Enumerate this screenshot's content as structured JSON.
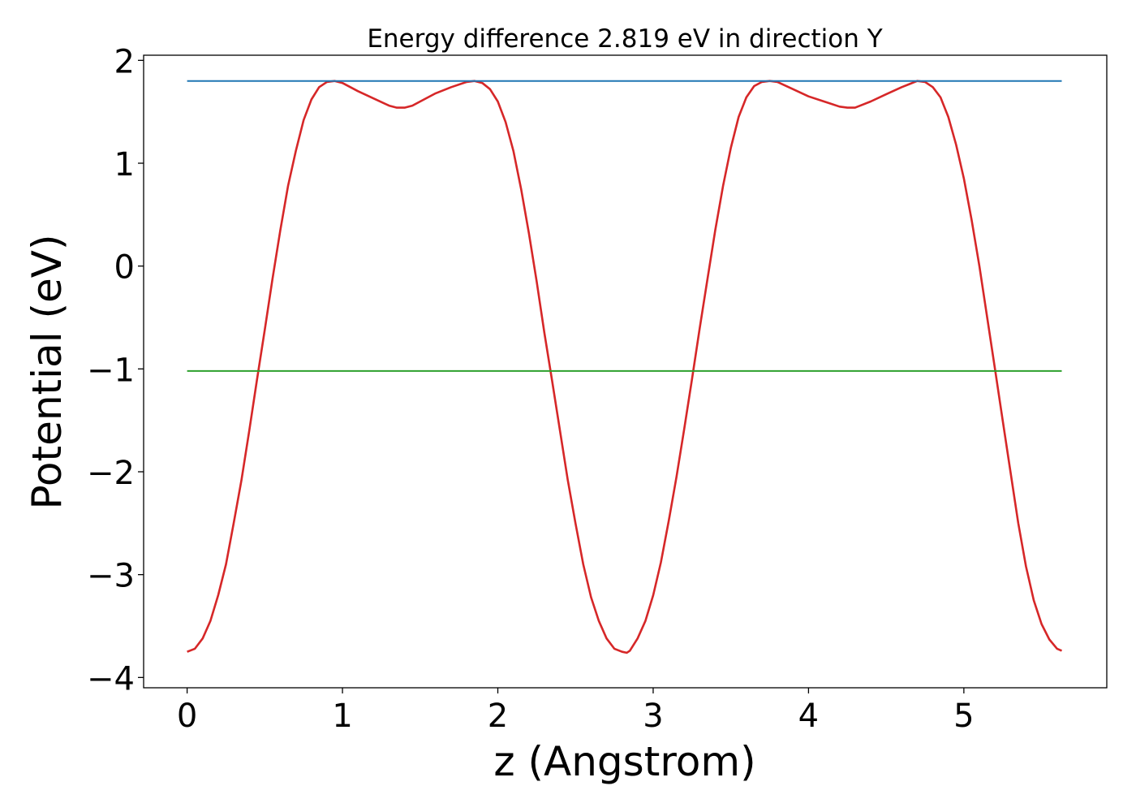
{
  "chart_data": {
    "type": "line",
    "title": "Energy difference 2.819 eV in direction Y",
    "xlabel": "z (Angstrom)",
    "ylabel": "Potential (eV)",
    "xlim": [
      -0.28,
      5.92
    ],
    "ylim": [
      -4.1,
      2.05
    ],
    "xticks": [
      0,
      1,
      2,
      3,
      4,
      5
    ],
    "xtick_labels": [
      "0",
      "1",
      "2",
      "3",
      "4",
      "5"
    ],
    "yticks": [
      -4,
      -3,
      -2,
      -1,
      0,
      1,
      2
    ],
    "ytick_labels": [
      "−4",
      "−3",
      "−2",
      "−1",
      "0",
      "1",
      "2"
    ],
    "grid": false,
    "series": [
      {
        "color": "#d62728",
        "x": [
          0,
          0.05,
          0.1,
          0.15,
          0.2,
          0.25,
          0.3,
          0.35,
          0.4,
          0.45,
          0.5,
          0.55,
          0.6,
          0.65,
          0.7,
          0.75,
          0.8,
          0.85,
          0.9,
          0.95,
          1.0,
          1.1,
          1.2,
          1.3,
          1.35,
          1.4,
          1.45,
          1.5,
          1.6,
          1.7,
          1.8,
          1.85,
          1.9,
          1.95,
          2.0,
          2.05,
          2.1,
          2.15,
          2.2,
          2.25,
          2.3,
          2.35,
          2.4,
          2.45,
          2.5,
          2.55,
          2.6,
          2.65,
          2.7,
          2.75,
          2.8,
          2.83,
          2.85,
          2.9,
          2.95,
          3.0,
          3.05,
          3.1,
          3.15,
          3.2,
          3.25,
          3.3,
          3.35,
          3.4,
          3.45,
          3.5,
          3.55,
          3.6,
          3.65,
          3.7,
          3.75,
          3.8,
          3.9,
          4.0,
          4.1,
          4.2,
          4.25,
          4.3,
          4.4,
          4.5,
          4.6,
          4.65,
          4.7,
          4.75,
          4.8,
          4.85,
          4.9,
          4.95,
          5.0,
          5.05,
          5.1,
          5.15,
          5.2,
          5.25,
          5.3,
          5.35,
          5.4,
          5.45,
          5.5,
          5.55,
          5.6,
          5.63
        ],
        "y": [
          -3.75,
          -3.72,
          -3.62,
          -3.45,
          -3.2,
          -2.9,
          -2.5,
          -2.08,
          -1.6,
          -1.1,
          -0.62,
          -0.12,
          0.35,
          0.78,
          1.12,
          1.42,
          1.62,
          1.74,
          1.79,
          1.8,
          1.78,
          1.7,
          1.63,
          1.56,
          1.54,
          1.54,
          1.56,
          1.6,
          1.68,
          1.74,
          1.79,
          1.8,
          1.78,
          1.72,
          1.6,
          1.4,
          1.12,
          0.75,
          0.32,
          -0.15,
          -0.65,
          -1.12,
          -1.6,
          -2.08,
          -2.5,
          -2.9,
          -3.22,
          -3.45,
          -3.62,
          -3.72,
          -3.75,
          -3.76,
          -3.74,
          -3.62,
          -3.45,
          -3.2,
          -2.88,
          -2.48,
          -2.05,
          -1.58,
          -1.1,
          -0.6,
          -0.12,
          0.35,
          0.78,
          1.15,
          1.45,
          1.64,
          1.75,
          1.79,
          1.8,
          1.79,
          1.72,
          1.65,
          1.6,
          1.55,
          1.54,
          1.54,
          1.6,
          1.67,
          1.74,
          1.77,
          1.8,
          1.79,
          1.74,
          1.64,
          1.45,
          1.18,
          0.85,
          0.45,
          0.0,
          -0.5,
          -1.0,
          -1.5,
          -2.0,
          -2.5,
          -2.92,
          -3.25,
          -3.48,
          -3.63,
          -3.72,
          -3.74
        ]
      },
      {
        "color": "#1f77b4",
        "x": [
          0,
          5.63
        ],
        "y": [
          1.8,
          1.8
        ]
      },
      {
        "color": "#2ca02c",
        "x": [
          0,
          5.63
        ],
        "y": [
          -1.02,
          -1.02
        ]
      }
    ]
  }
}
